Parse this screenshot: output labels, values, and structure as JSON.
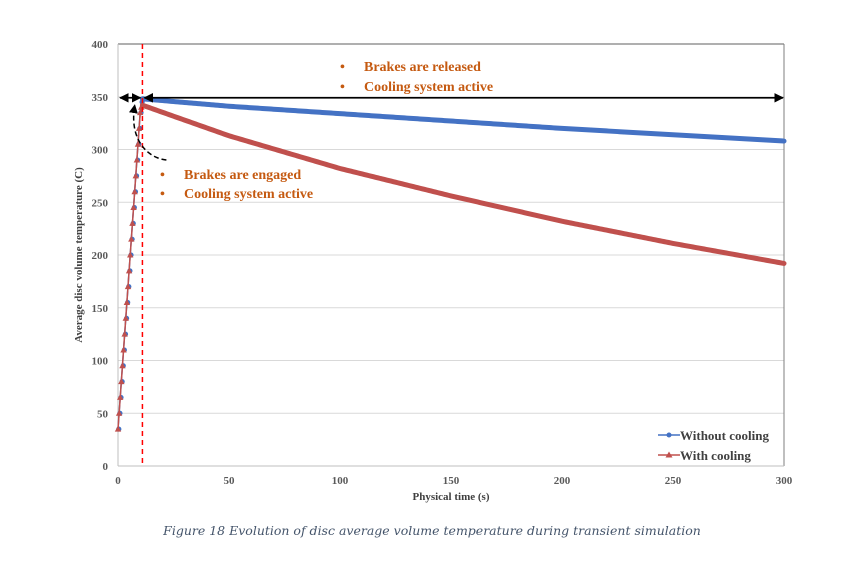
{
  "caption": "Figure 18 Evolution of disc average volume temperature during transient simulation",
  "chart_data": {
    "type": "line",
    "title": "",
    "xlabel": "Physical time (s)",
    "ylabel": "Average disc volume temperature (C)",
    "xlim": [
      0,
      300
    ],
    "ylim": [
      0,
      400
    ],
    "xticks": [
      "0",
      "50",
      "100",
      "150",
      "200",
      "250",
      "300"
    ],
    "yticks": [
      "0",
      "50",
      "100",
      "150",
      "200",
      "250",
      "300",
      "350",
      "400"
    ],
    "grid": "horizontal",
    "legend_position": "bottom-right",
    "series": [
      {
        "name": "Without cooling",
        "color": "#4472c4",
        "marker": "circle",
        "heating": {
          "x": [
            0,
            0.5,
            1,
            1.5,
            2,
            2.5,
            3,
            3.5,
            4,
            4.5,
            5,
            5.5,
            6,
            6.5,
            7,
            7.5,
            8,
            8.5,
            9,
            9.5,
            10,
            10.5,
            11
          ],
          "y": [
            35,
            50,
            65,
            80,
            95,
            110,
            125,
            140,
            155,
            170,
            185,
            200,
            215,
            230,
            245,
            260,
            275,
            290,
            305,
            320,
            335,
            345,
            348
          ]
        },
        "cooling": {
          "x": [
            11,
            50,
            100,
            150,
            200,
            250,
            300
          ],
          "y": [
            348,
            341,
            334,
            327,
            320,
            314,
            308
          ]
        }
      },
      {
        "name": "With cooling",
        "color": "#c0504d",
        "marker": "triangle",
        "heating": {
          "x": [
            0,
            0.5,
            1,
            1.5,
            2,
            2.5,
            3,
            3.5,
            4,
            4.5,
            5,
            5.5,
            6,
            6.5,
            7,
            7.5,
            8,
            8.5,
            9,
            9.5,
            10,
            10.5,
            11
          ],
          "y": [
            35,
            50,
            65,
            80,
            95,
            110,
            125,
            140,
            155,
            170,
            185,
            200,
            215,
            230,
            245,
            260,
            275,
            290,
            305,
            320,
            335,
            340,
            342
          ]
        },
        "cooling": {
          "x": [
            11,
            50,
            100,
            150,
            200,
            250,
            300
          ],
          "y": [
            342,
            313,
            282,
            256,
            232,
            211,
            192
          ]
        }
      }
    ],
    "annotations": {
      "vertical_line": {
        "x": 11,
        "color": "#ff0000",
        "style": "dashed"
      },
      "horizontal_arrow": {
        "y": 349,
        "x_from": 0,
        "x_to": 300,
        "split_at": 11
      },
      "curved_arrow": {
        "from": [
          20,
          290
        ],
        "to": [
          8,
          346
        ]
      },
      "engaged": [
        "Brakes are engaged",
        "Cooling system active"
      ],
      "released": [
        "Brakes are released",
        "Cooling system active"
      ],
      "bullet": "•",
      "color": "#c55a11"
    }
  }
}
